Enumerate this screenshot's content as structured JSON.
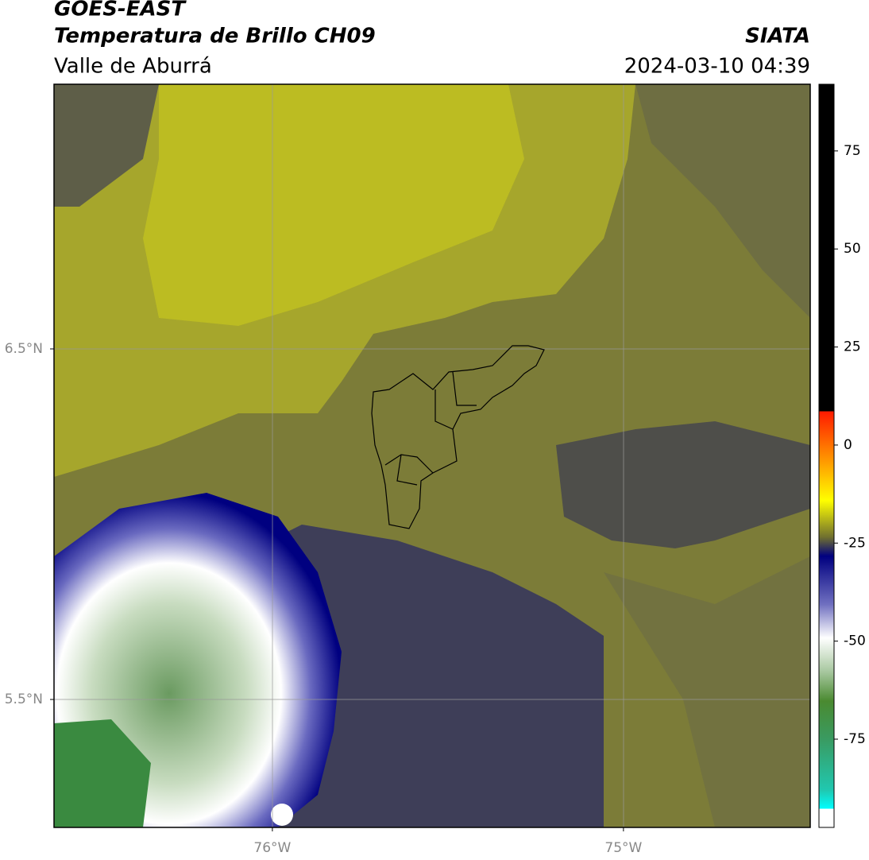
{
  "header": {
    "title": "GOES-EAST",
    "subtitle": "Temperatura de Brillo CH09",
    "region": "Valle de Aburrá",
    "source": "SIATA",
    "datetime": "2024-03-10 04:39"
  },
  "map": {
    "lat_lim": [
      5.135,
      7.255
    ],
    "lon_lim": [
      -76.622,
      -74.468
    ],
    "lat_ticks": [
      {
        "value": 6.5,
        "label": "6.5°N"
      },
      {
        "value": 5.5,
        "label": "5.5°N"
      }
    ],
    "lon_ticks": [
      {
        "value": -76,
        "label": "76°W"
      },
      {
        "value": -75,
        "label": "75°W"
      }
    ]
  },
  "colorbar": {
    "lim": [
      -97.5,
      92
    ],
    "ticks": [
      75,
      50,
      25,
      0,
      -25,
      -50,
      -75
    ]
  }
}
